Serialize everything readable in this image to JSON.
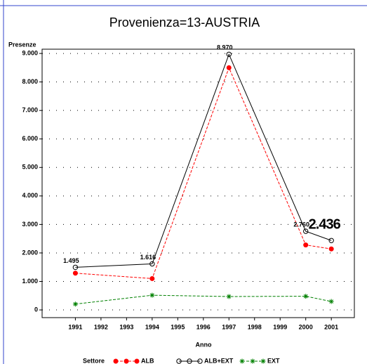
{
  "chart_data": {
    "type": "line",
    "title": "Provenienza=13-AUSTRIA",
    "y_label": "Presenze",
    "x_label": "Anno",
    "legend_title": "Settore",
    "legend": "bottom",
    "grid": true,
    "x": [
      1991,
      1994,
      1997,
      2000,
      2001
    ],
    "xlim": [
      1989.7,
      2001.9
    ],
    "xticks": [
      1991,
      1992,
      1993,
      1994,
      1995,
      1996,
      1997,
      1998,
      1999,
      2000,
      2001
    ],
    "ylim": [
      -270,
      9150
    ],
    "yticks": [
      0,
      {
        "value": 1000,
        "label": "1.000"
      },
      {
        "value": 2000,
        "label": "2.000"
      },
      {
        "value": 3000,
        "label": "3.000"
      },
      {
        "value": 4000,
        "label": "4.000"
      },
      {
        "value": 5000,
        "label": "5.000"
      },
      {
        "value": 6000,
        "label": "6.000"
      },
      {
        "value": 7000,
        "label": "7.000"
      },
      {
        "value": 8000,
        "label": "8.000"
      },
      {
        "value": 9000,
        "label": "9.000"
      }
    ],
    "series": [
      {
        "name": "ALB",
        "color": "#ff0000",
        "marker": "dot",
        "dash": true,
        "values": [
          1290,
          1100,
          8500,
          2280,
          2140
        ]
      },
      {
        "name": "ALB+EXT",
        "color": "#000000",
        "marker": "circle",
        "dash": false,
        "values": [
          1495,
          1616,
          8970,
          2760,
          2436
        ],
        "value_labels": [
          "1.495",
          "1.616",
          "8.970",
          "2.760",
          "2.436"
        ]
      },
      {
        "name": "EXT",
        "color": "#008000",
        "marker": "star",
        "dash": true,
        "values": [
          205,
          516,
          470,
          480,
          296
        ]
      }
    ]
  }
}
